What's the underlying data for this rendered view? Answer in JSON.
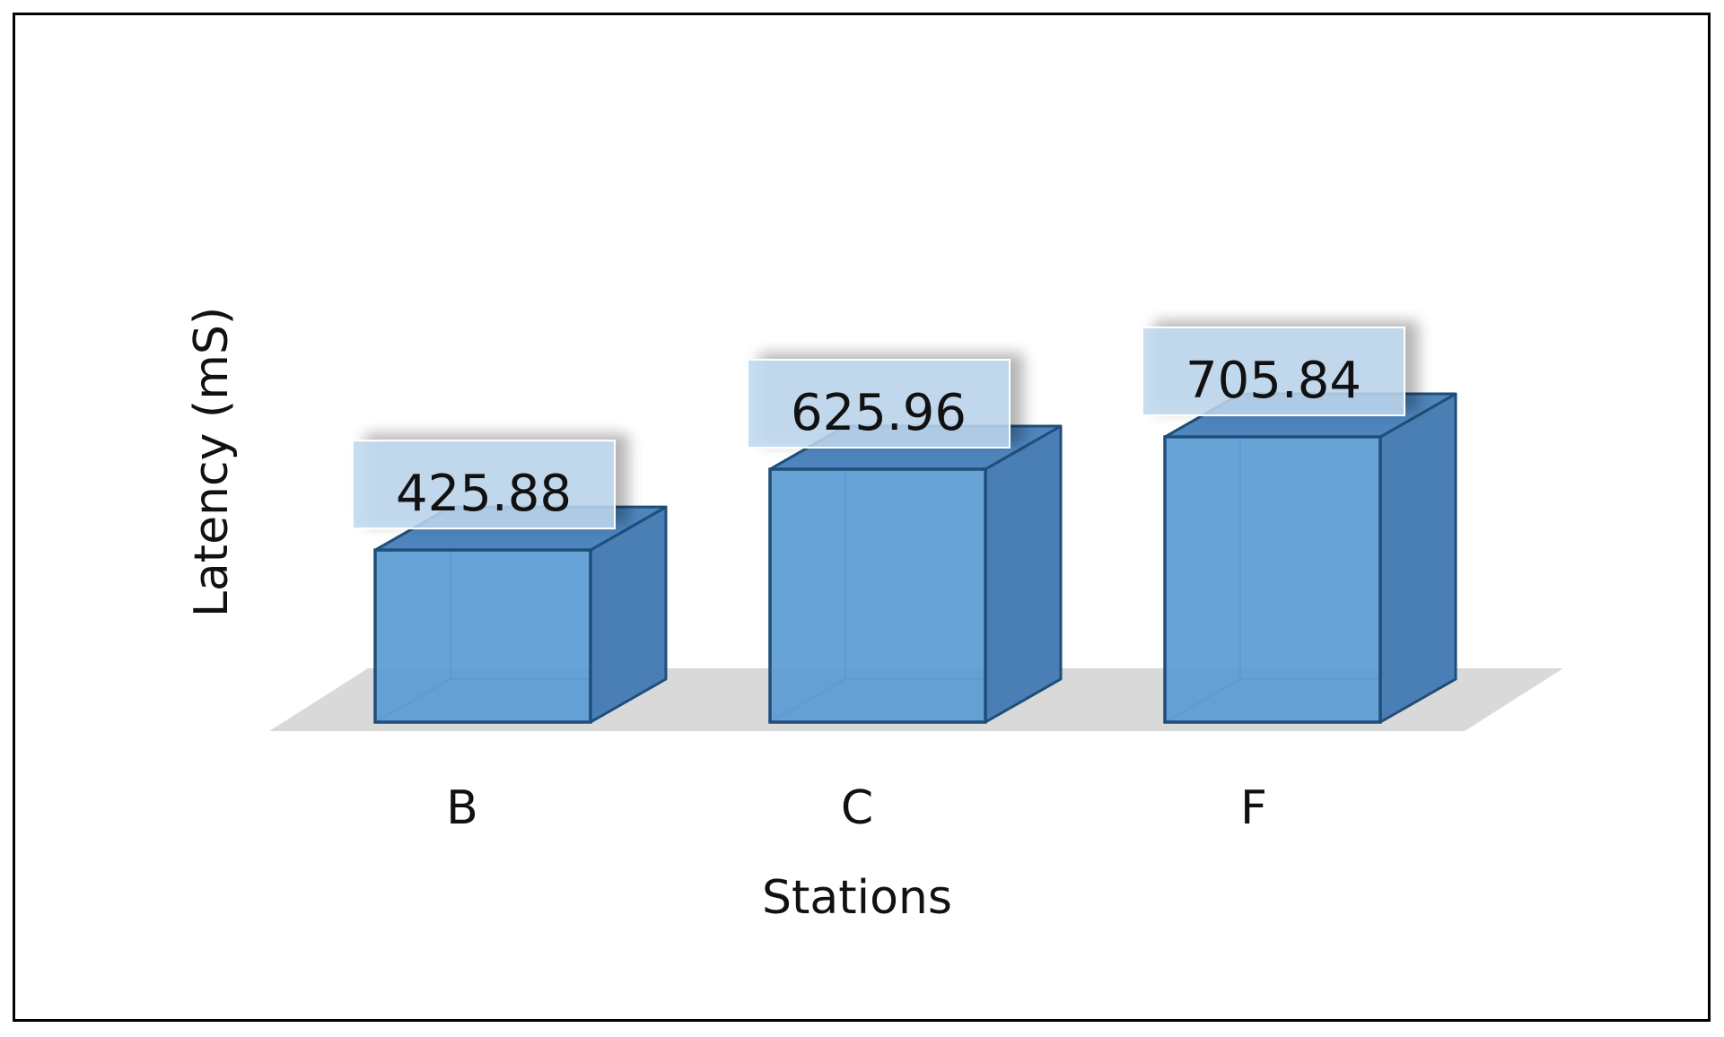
{
  "chart_data": {
    "type": "bar",
    "style": "3d-column",
    "categories": [
      "B",
      "C",
      "F"
    ],
    "values": [
      425.88,
      625.96,
      705.84
    ],
    "data_labels": [
      "425.88",
      "625.96",
      "705.84"
    ],
    "title": "",
    "xlabel": "Stations",
    "ylabel": "Latency (mS)",
    "ylim": [
      0,
      800
    ],
    "grid": false,
    "legend": "none",
    "colors": {
      "bar_front": "#5B9BD5",
      "bar_side": "#4A7FB5",
      "bar_top": "#4E85BD",
      "bar_edge": "#1F4E79",
      "floor": "#D9D9D9",
      "label_box": "#BDD7EE"
    }
  }
}
